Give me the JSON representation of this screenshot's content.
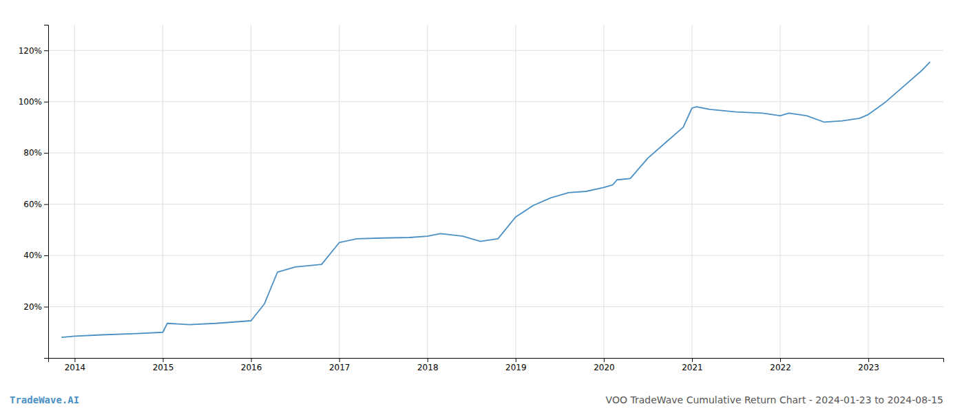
{
  "chart_data": {
    "type": "line",
    "title": "VOO TradeWave Cumulative Return Chart - 2024-01-23 to 2024-08-15",
    "annotations": [
      "TradeWave.AI"
    ],
    "color": "#4a90c4",
    "grid": true,
    "x": [
      2013.85,
      2014.0,
      2014.3,
      2014.7,
      2015.0,
      2015.05,
      2015.3,
      2015.6,
      2016.0,
      2016.15,
      2016.3,
      2016.5,
      2016.8,
      2017.0,
      2017.2,
      2017.5,
      2017.8,
      2018.0,
      2018.15,
      2018.4,
      2018.6,
      2018.8,
      2019.0,
      2019.2,
      2019.4,
      2019.6,
      2019.8,
      2020.0,
      2020.1,
      2020.15,
      2020.3,
      2020.5,
      2020.7,
      2020.9,
      2021.0,
      2021.05,
      2021.2,
      2021.5,
      2021.8,
      2022.0,
      2022.1,
      2022.3,
      2022.5,
      2022.7,
      2022.9,
      2023.0,
      2023.2,
      2023.4,
      2023.6,
      2023.7
    ],
    "values": [
      8.0,
      8.5,
      9.0,
      9.5,
      10.0,
      13.5,
      13.0,
      13.5,
      14.5,
      21.0,
      33.5,
      35.5,
      36.5,
      45.0,
      46.5,
      46.8,
      47.0,
      47.5,
      48.5,
      47.5,
      45.5,
      46.5,
      55.0,
      59.5,
      62.5,
      64.5,
      65.0,
      66.5,
      67.5,
      69.5,
      70.0,
      78.0,
      84.0,
      90.0,
      97.5,
      98.0,
      97.0,
      96.0,
      95.5,
      94.5,
      95.5,
      94.5,
      92.0,
      92.5,
      93.5,
      95.0,
      100.0,
      106.0,
      112.0,
      115.5
    ],
    "xlim": [
      2013.7,
      2023.85
    ],
    "xticks": [
      2014,
      2015,
      2016,
      2017,
      2018,
      2019,
      2020,
      2021,
      2022,
      2023
    ],
    "ylim": [
      0,
      130
    ],
    "yticks": [
      {
        "value": 20,
        "label": "20%"
      },
      {
        "value": 40,
        "label": "40%"
      },
      {
        "value": 60,
        "label": "60%"
      },
      {
        "value": 80,
        "label": "80%"
      },
      {
        "value": 100,
        "label": "100%"
      },
      {
        "value": 120,
        "label": "120%"
      }
    ]
  }
}
